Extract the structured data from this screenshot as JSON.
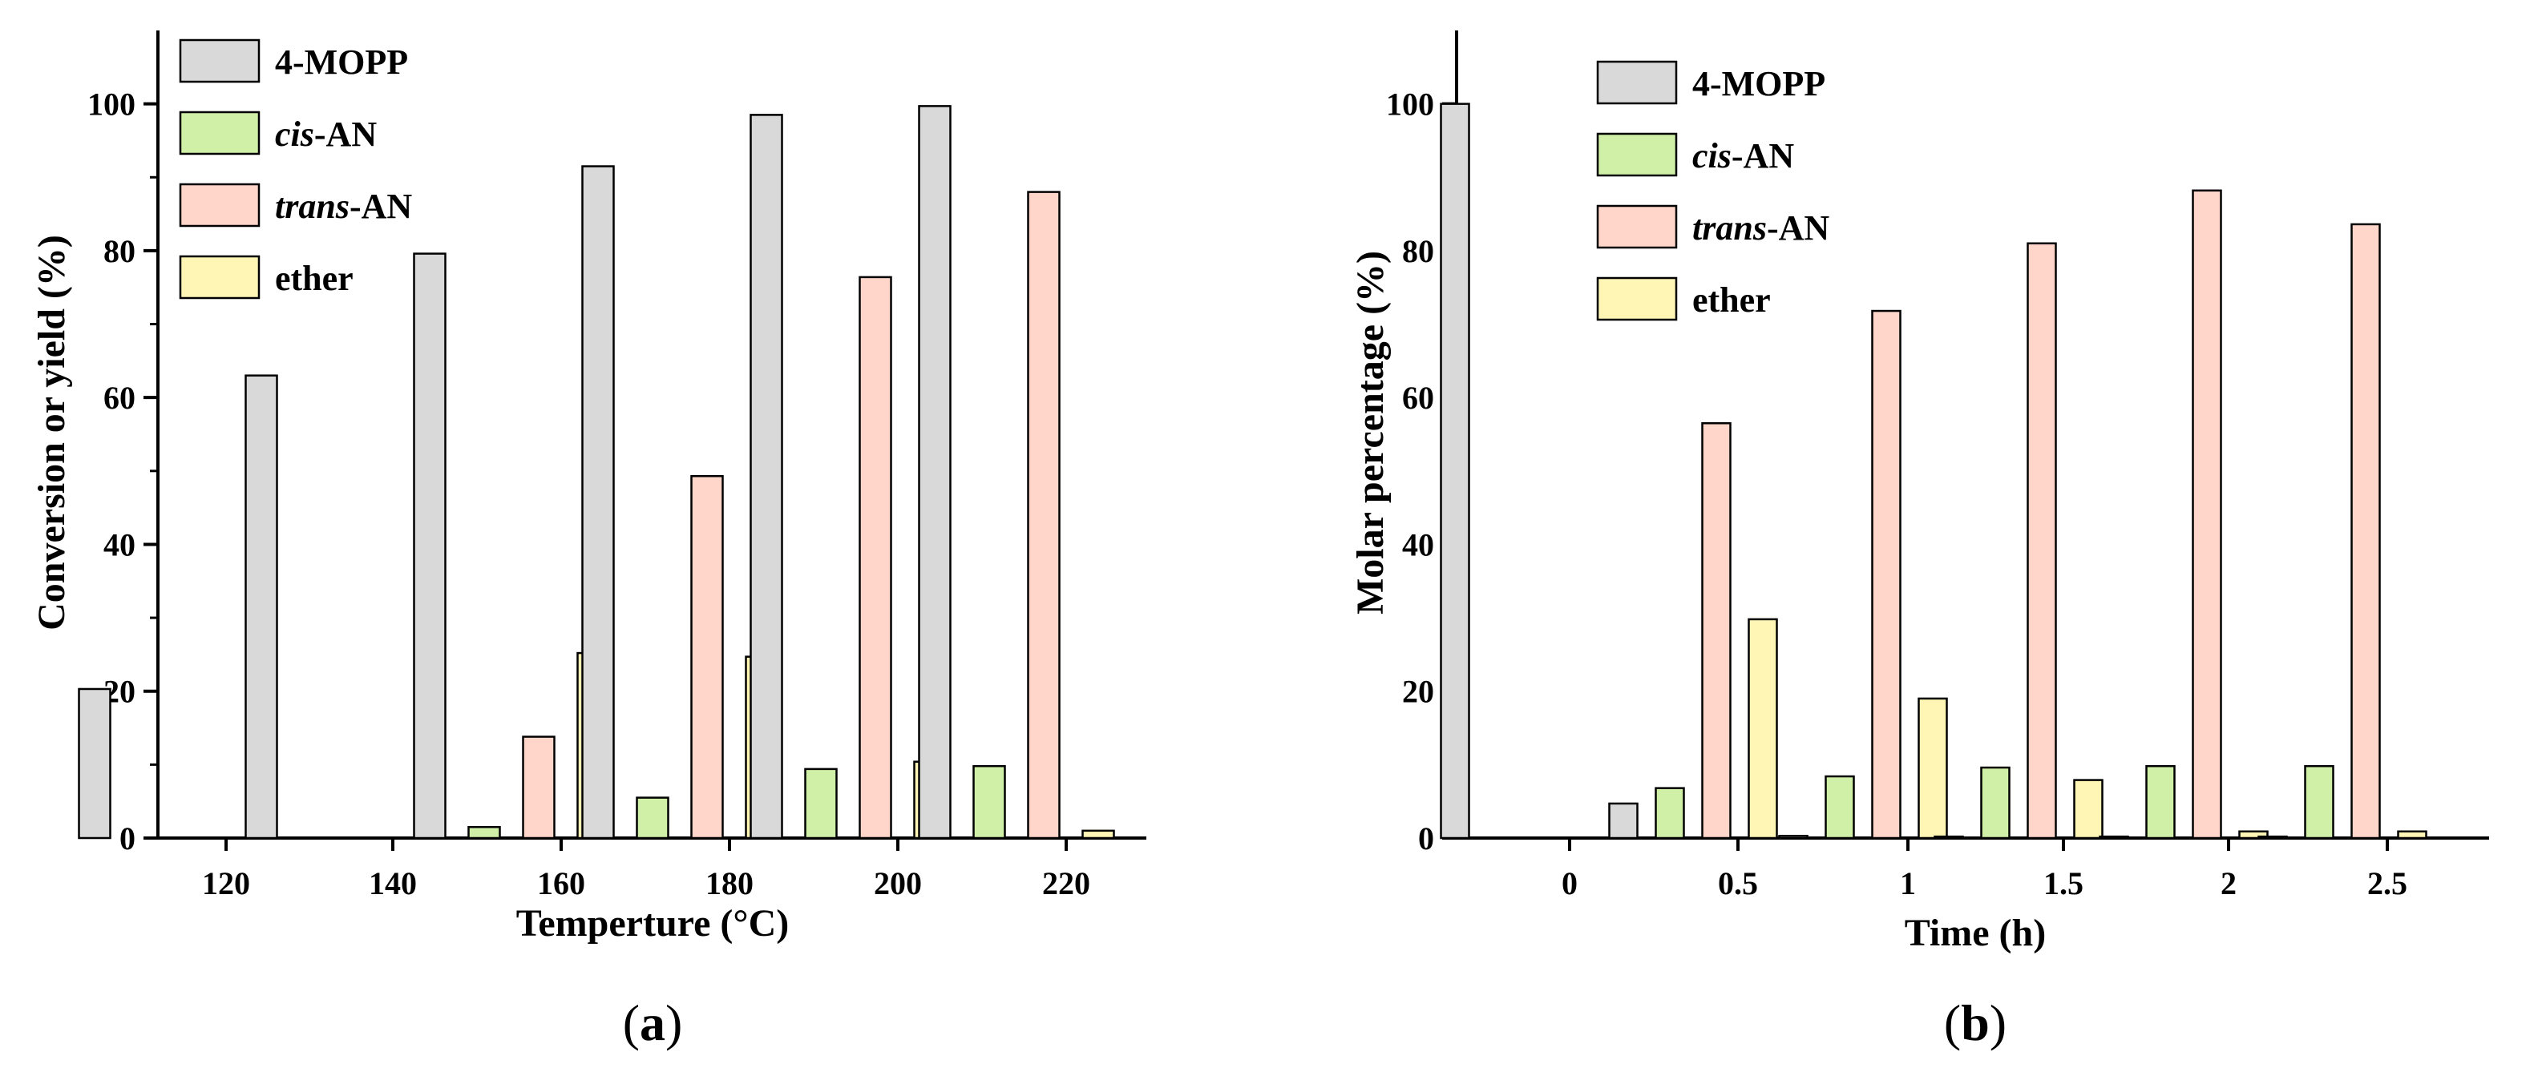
{
  "colors": {
    "4-MOPP": "#d9d9d9",
    "cis-AN": "#d0f0a8",
    "trans-AN": "#ffd6c9",
    "ether": "#fff6b6",
    "axis": "#000000"
  },
  "chart_data": [
    {
      "type": "bar",
      "panel": "a",
      "caption": {
        "open": "(",
        "letter": "a",
        "close": ")"
      },
      "xlabel": "Temperture (°C)",
      "ylabel": "Conversion or yield (%)",
      "categories": [
        "120",
        "140",
        "160",
        "180",
        "200",
        "220"
      ],
      "ylim": [
        0,
        110
      ],
      "yticks": [
        0,
        20,
        40,
        60,
        80,
        100
      ],
      "legend_position": "top-left",
      "series": [
        {
          "key": "4-MOPP",
          "name": "4-MOPP",
          "italic_prefix": "",
          "rest": "4-MOPP",
          "values": [
            20.3,
            63,
            79.6,
            91.5,
            98.5,
            99.7
          ]
        },
        {
          "key": "cis-AN",
          "name": "cis-AN",
          "italic_prefix": "cis",
          "rest": "-AN",
          "values": [
            0,
            0,
            1.5,
            5.5,
            9.4,
            9.8
          ]
        },
        {
          "key": "trans-AN",
          "name": "trans-AN",
          "italic_prefix": "trans",
          "rest": "-AN",
          "values": [
            0,
            0,
            13.8,
            49.3,
            76.4,
            88
          ]
        },
        {
          "key": "ether",
          "name": "ether",
          "italic_prefix": "",
          "rest": "ether",
          "values": [
            0,
            0,
            25.2,
            24.7,
            10.4,
            1
          ]
        }
      ]
    },
    {
      "type": "bar",
      "panel": "b",
      "caption": {
        "open": "(",
        "letter": "b",
        "close": ")"
      },
      "xlabel": "Time (h)",
      "ylabel": "Molar percentage (%)",
      "categories": [
        "0",
        "0.5",
        "1",
        "1.5",
        "2",
        "2.5"
      ],
      "ylim": [
        0,
        110
      ],
      "yticks": [
        0,
        20,
        40,
        60,
        80,
        100
      ],
      "legend_position": "top-left",
      "series": [
        {
          "key": "4-MOPP",
          "name": "4-MOPP",
          "italic_prefix": "",
          "rest": "4-MOPP",
          "values": [
            100,
            4.7,
            0.3,
            0.2,
            0.2,
            0.2
          ]
        },
        {
          "key": "cis-AN",
          "name": "cis-AN",
          "italic_prefix": "cis",
          "rest": "-AN",
          "values": [
            0,
            6.8,
            8.4,
            9.6,
            9.8,
            9.8
          ]
        },
        {
          "key": "trans-AN",
          "name": "trans-AN",
          "italic_prefix": "trans",
          "rest": "-AN",
          "values": [
            0,
            56.5,
            71.8,
            81,
            88.2,
            83.6
          ]
        },
        {
          "key": "ether",
          "name": "ether",
          "italic_prefix": "",
          "rest": "ether",
          "values": [
            0,
            29.8,
            19,
            7.9,
            0.9,
            0.9
          ]
        }
      ]
    }
  ]
}
